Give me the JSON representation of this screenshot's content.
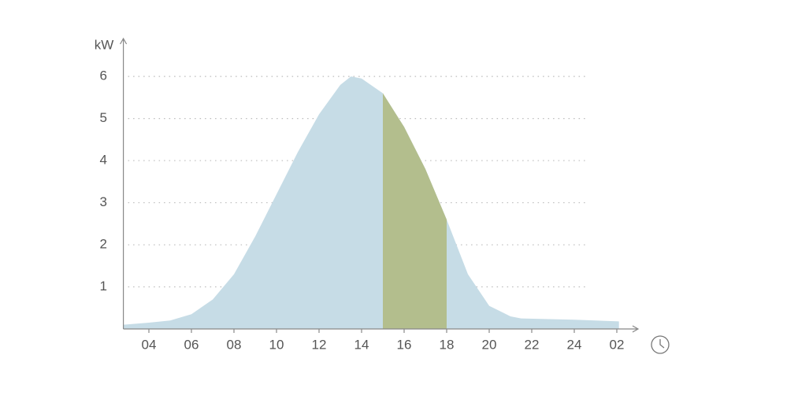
{
  "chart_data": {
    "type": "area",
    "y_label": "kW",
    "x": [
      2.8,
      4,
      5,
      6,
      7,
      8,
      9,
      10,
      11,
      12,
      13,
      13.5,
      14,
      15,
      16,
      17,
      18,
      19,
      20,
      21,
      21.5,
      24,
      26.1
    ],
    "values": [
      0.1,
      0.15,
      0.2,
      0.35,
      0.7,
      1.3,
      2.2,
      3.2,
      4.2,
      5.1,
      5.8,
      6.0,
      5.95,
      5.6,
      4.8,
      3.8,
      2.6,
      1.3,
      0.55,
      0.3,
      0.25,
      0.22,
      0.18
    ],
    "color": "#c6dce6",
    "highlight_x": [
      15,
      18
    ],
    "highlight_color": "#b3be8d",
    "xlim": [
      2.8,
      27
    ],
    "ylim": [
      0,
      6.9
    ],
    "xticks": [
      {
        "value": 4,
        "label": "04"
      },
      {
        "value": 6,
        "label": "06"
      },
      {
        "value": 8,
        "label": "08"
      },
      10,
      12,
      14,
      16,
      18,
      20,
      22,
      24,
      {
        "value": 26,
        "label": "02"
      }
    ],
    "yticks": [
      1,
      2,
      3,
      4,
      5,
      6
    ],
    "grid": true
  }
}
